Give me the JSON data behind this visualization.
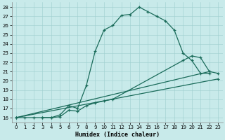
{
  "xlabel": "Humidex (Indice chaleur)",
  "bg_color": "#c8eaea",
  "line_color": "#1a6b5a",
  "xlim": [
    -0.5,
    23.5
  ],
  "ylim": [
    15.5,
    28.5
  ],
  "xticks": [
    0,
    1,
    2,
    3,
    4,
    5,
    6,
    7,
    8,
    9,
    10,
    11,
    12,
    13,
    14,
    15,
    16,
    17,
    18,
    19,
    20,
    21,
    22,
    23
  ],
  "yticks": [
    16,
    17,
    18,
    19,
    20,
    21,
    22,
    23,
    24,
    25,
    26,
    27,
    28
  ],
  "curve1_x": [
    0,
    1,
    2,
    3,
    4,
    5,
    6,
    7,
    8,
    9,
    10,
    11,
    12,
    13,
    14,
    15,
    16,
    17,
    18,
    19,
    20,
    21,
    22
  ],
  "curve1_y": [
    16,
    16,
    16,
    16,
    16,
    16.3,
    17.3,
    17.0,
    19.5,
    23.2,
    25.5,
    26.0,
    27.1,
    27.2,
    28.0,
    27.5,
    27.0,
    26.5,
    25.5,
    23.0,
    22.2,
    20.8,
    20.8
  ],
  "curve2_x": [
    3,
    4,
    5,
    6,
    7,
    8,
    9,
    10,
    11,
    19,
    20,
    21,
    22,
    23
  ],
  "curve2_y": [
    16,
    16,
    16.1,
    16.8,
    16.7,
    17.3,
    17.6,
    17.8,
    18.0,
    22.2,
    22.7,
    22.5,
    21.0,
    20.8
  ],
  "line3_x": [
    0,
    22
  ],
  "line3_y": [
    16,
    21.0
  ],
  "line4_x": [
    0,
    23
  ],
  "line4_y": [
    16,
    20.2
  ]
}
